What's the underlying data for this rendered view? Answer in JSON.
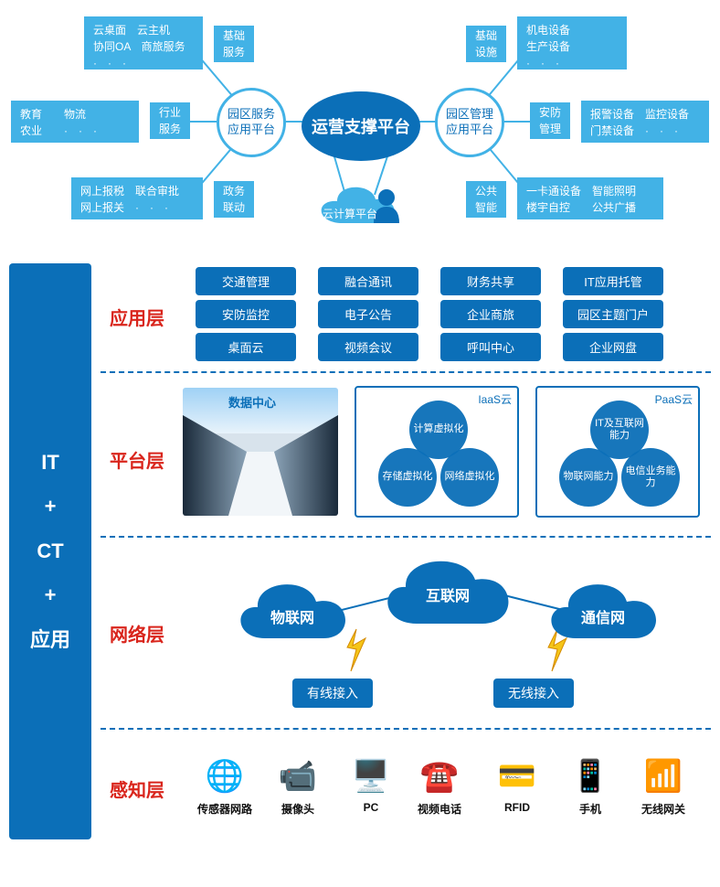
{
  "colors": {
    "light": "#42b2e6",
    "dark": "#0b6fb8",
    "red": "#d9251c"
  },
  "top": {
    "center": "运营支撑平台",
    "cloud_label": "云计算平台",
    "left_circle": "园区服务\n应用平台",
    "right_circle": "园区管理\n应用平台",
    "boxes": {
      "l1": "云桌面　云主机\n协同OA　商旅服务\n·　·　·",
      "l2": "基础\n服务",
      "l3": "教育　　物流\n农业　　·　·　·",
      "l4": "行业\n服务",
      "l5": "网上报税　联合审批\n网上报关　·　·　·",
      "l6": "政务\n联动",
      "r1": "基础\n设施",
      "r2": "机电设备\n生产设备\n·　·　·",
      "r3": "安防\n管理",
      "r4": "报警设备　监控设备\n门禁设备　·　·　·",
      "r5": "公共\n智能",
      "r6": "一卡通设备　智能照明\n楼宇自控　　公共广播"
    }
  },
  "bottom": {
    "pillar": "IT\n+\nCT\n+\n应用",
    "layers": {
      "app": "应用层",
      "plat": "平台层",
      "net": "网络层",
      "sense": "感知层"
    },
    "app_rows": [
      [
        "交通管理",
        "融合通讯",
        "财务共享",
        "IT应用托管"
      ],
      [
        "安防监控",
        "电子公告",
        "企业商旅",
        "园区主题门户"
      ],
      [
        "桌面云",
        "视频会议",
        "呼叫中心",
        "企业网盘"
      ]
    ],
    "plat": {
      "dc_title": "数据中心",
      "iaas": {
        "corner": "IaaS云",
        "v": [
          "计算虚拟化",
          "存储虚拟化",
          "网络虚拟化"
        ]
      },
      "paas": {
        "corner": "PaaS云",
        "v": [
          "IT及互联网能力",
          "物联网能力",
          "电信业务能力"
        ]
      }
    },
    "net": {
      "clouds": [
        "物联网",
        "互联网",
        "通信网"
      ],
      "access": [
        "有线接入",
        "无线接入"
      ]
    },
    "devices": [
      {
        "label": "传感器网路",
        "glyph": "🌐"
      },
      {
        "label": "摄像头",
        "glyph": "📹"
      },
      {
        "label": "PC",
        "glyph": "🖥️"
      },
      {
        "label": "视频电话",
        "glyph": "☎️"
      },
      {
        "label": "RFID",
        "glyph": "💳"
      },
      {
        "label": "手机",
        "glyph": "📱"
      },
      {
        "label": "无线网关",
        "glyph": "📶"
      }
    ]
  }
}
